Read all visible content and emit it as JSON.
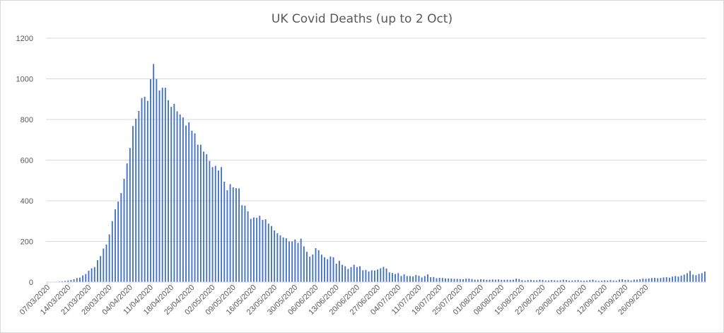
{
  "chart_data": {
    "type": "bar",
    "title": "UK Covid Deaths (up to 2 Oct)",
    "xlabel": "",
    "ylabel": "",
    "ylim": [
      0,
      1200
    ],
    "yticks": [
      0,
      200,
      400,
      600,
      800,
      1000,
      1200
    ],
    "grid": true,
    "legend": "none",
    "bar_color": "#4472c4",
    "grid_color": "#d9d9d9",
    "text_color": "#595959",
    "x_tick_labels": [
      "07/03/2020",
      "14/03/2020",
      "21/03/2020",
      "28/03/2020",
      "04/04/2020",
      "11/04/2020",
      "18/04/2020",
      "25/04/2020",
      "02/05/2020",
      "09/05/2020",
      "16/05/2020",
      "23/05/2020",
      "30/05/2020",
      "06/06/2020",
      "13/06/2020",
      "20/06/2020",
      "27/06/2020",
      "04/07/2020",
      "11/07/2020",
      "18/07/2020",
      "25/07/2020",
      "01/08/2020",
      "08/08/2020",
      "15/08/2020",
      "22/08/2020",
      "29/08/2020",
      "05/09/2020",
      "12/09/2020",
      "19/09/2020",
      "26/09/2020"
    ],
    "first_date": "07/03/2020",
    "values": [
      2,
      1,
      1,
      2,
      3,
      4,
      6,
      8,
      10,
      14,
      20,
      22,
      33,
      40,
      56,
      68,
      74,
      108,
      128,
      165,
      185,
      235,
      300,
      358,
      396,
      438,
      508,
      584,
      660,
      768,
      804,
      842,
      905,
      912,
      892,
      998,
      1073,
      999,
      943,
      956,
      956,
      895,
      862,
      877,
      840,
      825,
      810,
      770,
      786,
      745,
      732,
      676,
      676,
      642,
      629,
      596,
      566,
      572,
      549,
      566,
      494,
      452,
      482,
      466,
      462,
      461,
      378,
      376,
      348,
      311,
      318,
      316,
      326,
      306,
      309,
      288,
      276,
      254,
      240,
      230,
      220,
      216,
      200,
      200,
      210,
      193,
      214,
      176,
      149,
      125,
      136,
      167,
      157,
      135,
      122,
      113,
      126,
      122,
      91,
      105,
      85,
      78,
      65,
      74,
      85,
      74,
      78,
      58,
      60,
      52,
      58,
      57,
      62,
      68,
      75,
      67,
      48,
      45,
      40,
      44,
      30,
      38,
      30,
      30,
      28,
      35,
      31,
      23,
      30,
      38,
      24,
      25,
      19,
      21,
      20,
      18,
      18,
      17,
      16,
      16,
      15,
      14,
      17,
      17,
      15,
      12,
      12,
      14,
      13,
      11,
      12,
      13,
      12,
      13,
      11,
      11,
      12,
      11,
      12,
      17,
      15,
      10,
      8,
      10,
      11,
      9,
      9,
      12,
      11,
      8,
      8,
      10,
      9,
      8,
      9,
      12,
      10,
      7,
      8,
      9,
      10,
      8,
      7,
      8,
      10,
      12,
      8,
      6,
      7,
      9,
      8,
      10,
      8,
      7,
      12,
      14,
      10,
      11,
      8,
      12,
      12,
      14,
      17,
      16,
      18,
      20,
      21,
      19,
      20,
      23,
      24,
      22,
      27,
      30,
      27,
      32,
      37,
      44,
      55,
      37,
      34,
      40,
      44,
      52
    ]
  }
}
